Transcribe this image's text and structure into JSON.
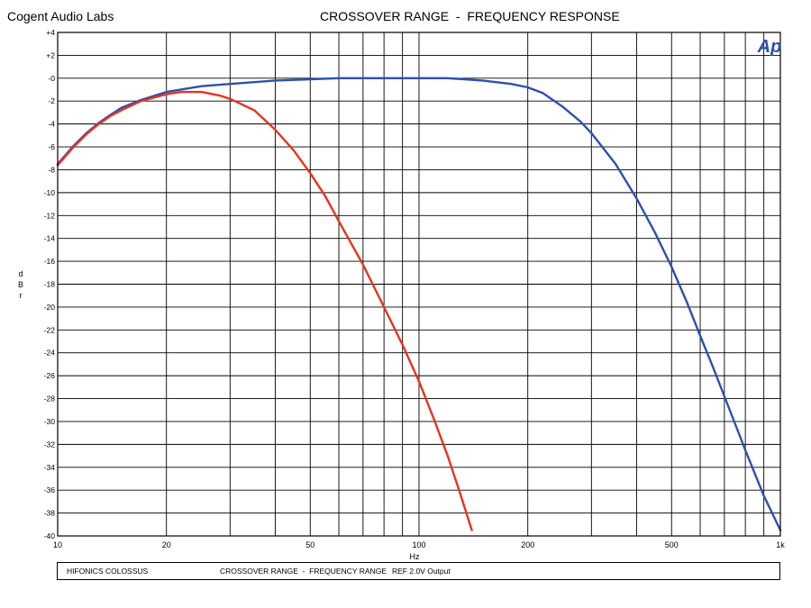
{
  "header": {
    "left_text": "Cogent Audio Labs",
    "title": "CROSSOVER RANGE  -  FREQUENCY RESPONSE"
  },
  "logo": {
    "text": "Ap",
    "color": "#2b4fa8"
  },
  "footer": {
    "item1": "HIFONICS COLOSSUS",
    "item2": "CROSSOVER RANGE  -  FREQUENCY RANGE",
    "item3": "REF 2.0V Output"
  },
  "chart_data": {
    "type": "line",
    "title": "CROSSOVER RANGE  -  FREQUENCY RESPONSE",
    "xlabel": "Hz",
    "ylabel": "dBr",
    "ylabel_chars": [
      "d",
      "B",
      "r"
    ],
    "x_scale": "log",
    "xlim": [
      10,
      1000
    ],
    "ylim": [
      -40,
      4
    ],
    "grid": true,
    "x_ticks": [
      {
        "value": 10,
        "label": "10"
      },
      {
        "value": 20,
        "label": "20"
      },
      {
        "value": 50,
        "label": "50"
      },
      {
        "value": 100,
        "label": "100"
      },
      {
        "value": 200,
        "label": "200"
      },
      {
        "value": 500,
        "label": "500"
      },
      {
        "value": 1000,
        "label": "1k"
      }
    ],
    "y_ticks": [
      {
        "value": 4,
        "label": "+4"
      },
      {
        "value": 2,
        "label": "+2"
      },
      {
        "value": 0,
        "label": "-0"
      },
      {
        "value": -2,
        "label": "-2"
      },
      {
        "value": -4,
        "label": "-4"
      },
      {
        "value": -6,
        "label": "-6"
      },
      {
        "value": -8,
        "label": "-8"
      },
      {
        "value": -10,
        "label": "-10"
      },
      {
        "value": -12,
        "label": "-12"
      },
      {
        "value": -14,
        "label": "-14"
      },
      {
        "value": -16,
        "label": "-16"
      },
      {
        "value": -18,
        "label": "-18"
      },
      {
        "value": -20,
        "label": "-20"
      },
      {
        "value": -22,
        "label": "-22"
      },
      {
        "value": -24,
        "label": "-24"
      },
      {
        "value": -26,
        "label": "-26"
      },
      {
        "value": -28,
        "label": "-28"
      },
      {
        "value": -30,
        "label": "-30"
      },
      {
        "value": -32,
        "label": "-32"
      },
      {
        "value": -34,
        "label": "-34"
      },
      {
        "value": -36,
        "label": "-36"
      },
      {
        "value": -38,
        "label": "-38"
      },
      {
        "value": -40,
        "label": "-40"
      }
    ],
    "series": [
      {
        "color": "#2e4fb0",
        "points": [
          [
            10,
            -7.5
          ],
          [
            11,
            -6.0
          ],
          [
            12,
            -4.8
          ],
          [
            13,
            -3.9
          ],
          [
            14,
            -3.2
          ],
          [
            15,
            -2.6
          ],
          [
            17,
            -1.9
          ],
          [
            20,
            -1.2
          ],
          [
            25,
            -0.7
          ],
          [
            30,
            -0.5
          ],
          [
            40,
            -0.2
          ],
          [
            50,
            -0.1
          ],
          [
            60,
            0.0
          ],
          [
            80,
            0.0
          ],
          [
            100,
            0.0
          ],
          [
            120,
            0.0
          ],
          [
            150,
            -0.2
          ],
          [
            180,
            -0.5
          ],
          [
            200,
            -0.8
          ],
          [
            220,
            -1.3
          ],
          [
            250,
            -2.5
          ],
          [
            280,
            -3.8
          ],
          [
            300,
            -4.8
          ],
          [
            350,
            -7.5
          ],
          [
            400,
            -10.5
          ],
          [
            450,
            -13.5
          ],
          [
            500,
            -16.5
          ],
          [
            550,
            -19.5
          ],
          [
            600,
            -22.5
          ],
          [
            650,
            -25.2
          ],
          [
            700,
            -27.8
          ],
          [
            800,
            -32.5
          ],
          [
            900,
            -36.5
          ],
          [
            1000,
            -39.5
          ]
        ]
      },
      {
        "color": "#e8321e",
        "points": [
          [
            10,
            -7.6
          ],
          [
            11,
            -6.1
          ],
          [
            12,
            -4.9
          ],
          [
            13,
            -4.0
          ],
          [
            14,
            -3.3
          ],
          [
            15,
            -2.8
          ],
          [
            17,
            -2.0
          ],
          [
            20,
            -1.4
          ],
          [
            22,
            -1.2
          ],
          [
            25,
            -1.2
          ],
          [
            28,
            -1.5
          ],
          [
            30,
            -1.8
          ],
          [
            35,
            -2.8
          ],
          [
            40,
            -4.5
          ],
          [
            45,
            -6.3
          ],
          [
            50,
            -8.3
          ],
          [
            55,
            -10.3
          ],
          [
            60,
            -12.5
          ],
          [
            70,
            -16.3
          ],
          [
            80,
            -20.0
          ],
          [
            90,
            -23.3
          ],
          [
            100,
            -26.5
          ],
          [
            110,
            -29.8
          ],
          [
            120,
            -33.0
          ],
          [
            130,
            -36.3
          ],
          [
            140,
            -39.5
          ]
        ]
      }
    ]
  }
}
